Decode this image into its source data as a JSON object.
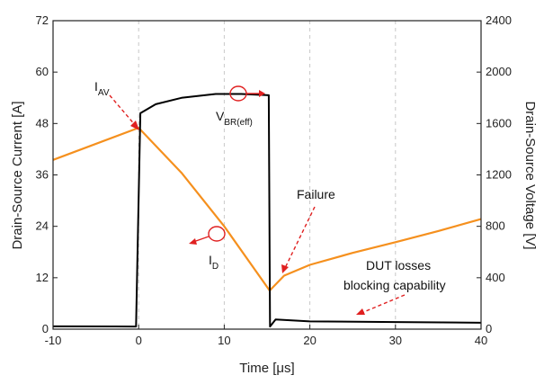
{
  "chart_data": {
    "type": "line",
    "xlabel": "Time [μs]",
    "ylabel_left": "Drain-Source Current [A]",
    "ylabel_right": "Drain-Source Voltage [V]",
    "xlim": [
      -10,
      40
    ],
    "ylim_left": [
      0,
      72
    ],
    "ylim_right": [
      0,
      2400
    ],
    "x_ticks": [
      "-10",
      "0",
      "10",
      "20",
      "30",
      "40"
    ],
    "y_left_ticks": [
      "0",
      "12",
      "24",
      "36",
      "48",
      "60",
      "72"
    ],
    "y_right_ticks": [
      "0",
      "400",
      "800",
      "1200",
      "1600",
      "2000",
      "2400"
    ],
    "grid": "x-only dashed",
    "legend": "none",
    "series": [
      {
        "axis": "left",
        "color": "#f5901e",
        "points": [
          [
            -10,
            39.5
          ],
          [
            0,
            47
          ],
          [
            5,
            36.5
          ],
          [
            10,
            24
          ],
          [
            15.3,
            9
          ],
          [
            17,
            12.5
          ],
          [
            20,
            15
          ],
          [
            25,
            17.8
          ],
          [
            30,
            20.3
          ],
          [
            35,
            22.9
          ],
          [
            40,
            25.7
          ]
        ]
      },
      {
        "axis": "right",
        "color": "#000000",
        "points": [
          [
            -10,
            22
          ],
          [
            -0.3,
            20
          ],
          [
            0.2,
            1680
          ],
          [
            2,
            1750
          ],
          [
            5,
            1800
          ],
          [
            9,
            1830
          ],
          [
            12,
            1830
          ],
          [
            15.2,
            1820
          ],
          [
            15.35,
            20
          ],
          [
            16,
            75
          ],
          [
            20,
            60
          ],
          [
            30,
            55
          ],
          [
            40,
            50
          ]
        ]
      }
    ],
    "annotations": {
      "iav_main": "I",
      "iav_sub": "AV",
      "id_main": "I",
      "id_sub": "D",
      "vbr_main": "V",
      "vbr_sub": "BR(eff)",
      "failure": "Failure",
      "dut_line1": "DUT losses",
      "dut_line2": "blocking capability"
    }
  }
}
